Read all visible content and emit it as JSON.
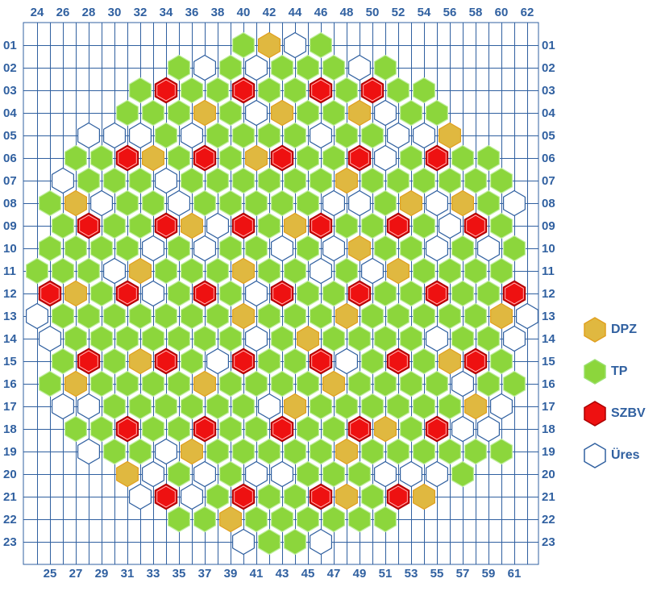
{
  "colors": {
    "grid": "#3060a0",
    "DPZ_fill": "#e0b840",
    "DPZ_stroke": "#e0a020",
    "TP_fill": "#8cd63c",
    "TP_stroke": "#c0eea0",
    "SZBV_fill": "#ee1111",
    "SZBV_stroke": "#aa0000",
    "URES_fill": "#ffffff",
    "URES_stroke": "#3060a0"
  },
  "axes": {
    "top_columns": [
      "24",
      "26",
      "28",
      "30",
      "32",
      "34",
      "36",
      "38",
      "40",
      "42",
      "44",
      "46",
      "48",
      "50",
      "52",
      "54",
      "56",
      "58",
      "60",
      "62"
    ],
    "bottom_columns": [
      "25",
      "27",
      "29",
      "31",
      "33",
      "35",
      "37",
      "39",
      "41",
      "43",
      "45",
      "47",
      "49",
      "51",
      "53",
      "55",
      "57",
      "59",
      "61"
    ],
    "rows": [
      "01",
      "02",
      "03",
      "04",
      "05",
      "06",
      "07",
      "08",
      "09",
      "10",
      "11",
      "12",
      "13",
      "14",
      "15",
      "16",
      "17",
      "18",
      "19",
      "20",
      "21",
      "22",
      "23"
    ]
  },
  "legend": [
    {
      "key": "D",
      "label": "DPZ"
    },
    {
      "key": "T",
      "label": "TP"
    },
    {
      "key": "S",
      "label": "SZBV"
    },
    {
      "key": "U",
      "label": "Üres"
    }
  ],
  "core_map": {
    "codes": {
      "D": "DPZ",
      "T": "TP",
      "S": "SZBV",
      "U": "Üres"
    },
    "rows": [
      {
        "row": "01",
        "start_col": 40,
        "cells": "TDUT"
      },
      {
        "row": "02",
        "start_col": 35,
        "cells": "TUTUTTTUT"
      },
      {
        "row": "03",
        "start_col": 32,
        "cells": "TSTTSTTSTSTT"
      },
      {
        "row": "04",
        "start_col": 31,
        "cells": "TTTDTUDTTDUTT"
      },
      {
        "row": "05",
        "start_col": 28,
        "cells": "UUUTUTTTTUTTUUD"
      },
      {
        "row": "06",
        "start_col": 27,
        "cells": "TTSDTSTDSTTSUTSTT"
      },
      {
        "row": "07",
        "start_col": 26,
        "cells": "UTTTUTTTTTTDTTTTTT"
      },
      {
        "row": "08",
        "start_col": 25,
        "cells": "TDUTTUTTTTTUUTDUDTU"
      },
      {
        "row": "09",
        "start_col": 26,
        "cells": "TSTTSDUSTDSTTSTUST"
      },
      {
        "row": "10",
        "start_col": 25,
        "cells": "TTTTUTUTTUTUDTTUTUT"
      },
      {
        "row": "11",
        "start_col": 24,
        "cells": "TTTUDTTTDTTUTUDTTTT"
      },
      {
        "row": "12",
        "start_col": 25,
        "cells": "SDTSUTSTUSTTSTTSTTS"
      },
      {
        "row": "13",
        "start_col": 24,
        "cells": "UTTTTTTTDTTTDTTTTTDU"
      },
      {
        "row": "14",
        "start_col": 25,
        "cells": "UTTTTTTTUTDTTTTUTTU"
      },
      {
        "row": "15",
        "start_col": 26,
        "cells": "TSTDSTUSTTSUTSTDST"
      },
      {
        "row": "16",
        "start_col": 25,
        "cells": "TDTTTTDTTTTDTTTTUTT"
      },
      {
        "row": "17",
        "start_col": 26,
        "cells": "UUTTTTTTUDTTTTTTDU"
      },
      {
        "row": "18",
        "start_col": 27,
        "cells": "TTSTTSTTSTTSDTSUU"
      },
      {
        "row": "19",
        "start_col": 28,
        "cells": "UTTUDTTTTTDTTTTTT"
      },
      {
        "row": "20",
        "start_col": 31,
        "cells": "DUTUTUUTTTUUUT"
      },
      {
        "row": "21",
        "start_col": 32,
        "cells": "USUTSTTSDTSD"
      },
      {
        "row": "22",
        "start_col": 35,
        "cells": "TTDTTTTTT"
      },
      {
        "row": "23",
        "start_col": 40,
        "cells": "UTTU"
      }
    ]
  }
}
